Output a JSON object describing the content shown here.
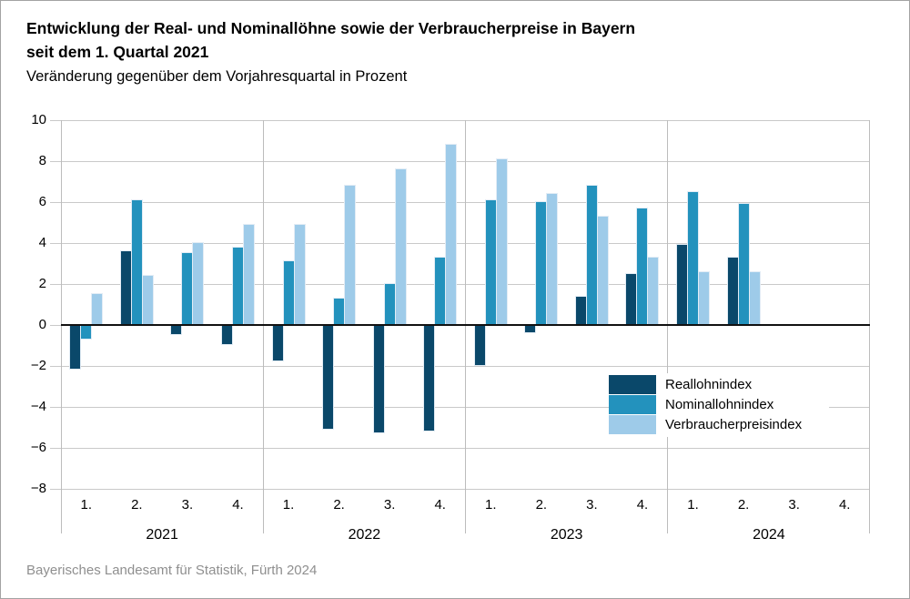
{
  "header": {
    "title_line1": "Entwicklung der Real- und Nominallöhne sowie der Verbraucherpreise in Bayern",
    "title_line2": "seit dem 1. Quartal 2021",
    "subtitle": "Veränderung gegenüber dem Vorjahresquartal in Prozent"
  },
  "footer": {
    "source": "Bayerisches Landesamt für Statistik, Fürth 2024"
  },
  "chart_data": {
    "type": "bar",
    "title": "Entwicklung der Real- und Nominallöhne sowie der Verbraucherpreise in Bayern seit dem 1. Quartal 2021",
    "subtitle": "Veränderung gegenüber dem Vorjahresquartal in Prozent",
    "xlabel": "",
    "ylabel": "",
    "ylim": [
      -8,
      10
    ],
    "grid": true,
    "ytick_values": [
      10,
      8,
      6,
      4,
      2,
      0,
      -2,
      -4,
      -6,
      -8
    ],
    "ytick_labels": [
      "10",
      "8",
      "6",
      "4",
      "2",
      "0",
      "−2",
      "−4",
      "−6",
      "−8"
    ],
    "years": [
      "2021",
      "2022",
      "2023",
      "2024"
    ],
    "quarters": [
      "1.",
      "2.",
      "3.",
      "4."
    ],
    "series": [
      {
        "name": "Reallohnindex",
        "color": "#0a486a",
        "values": [
          [
            -2.1,
            3.6,
            -0.4,
            -0.9
          ],
          [
            -1.7,
            -5.0,
            -5.2,
            -5.1
          ],
          [
            -1.9,
            -0.3,
            1.4,
            2.5
          ],
          [
            3.9,
            3.3,
            null,
            null
          ]
        ]
      },
      {
        "name": "Nominallohnindex",
        "color": "#2392bd",
        "values": [
          [
            -0.6,
            6.1,
            3.5,
            3.8
          ],
          [
            3.1,
            1.3,
            2.0,
            3.3
          ],
          [
            6.1,
            6.0,
            6.8,
            5.7
          ],
          [
            6.5,
            5.9,
            null,
            null
          ]
        ]
      },
      {
        "name": "Verbraucherpreisindex",
        "color": "#9ecbe9",
        "values": [
          [
            1.5,
            2.4,
            4.0,
            4.9
          ],
          [
            4.9,
            6.8,
            7.6,
            8.8
          ],
          [
            8.1,
            6.4,
            5.3,
            3.3
          ],
          [
            2.6,
            2.6,
            null,
            null
          ]
        ]
      }
    ],
    "legend": {
      "position": "inside-right",
      "entries": [
        "Reallohnindex",
        "Nominallohnindex",
        "Verbraucherpreisindex"
      ]
    }
  }
}
